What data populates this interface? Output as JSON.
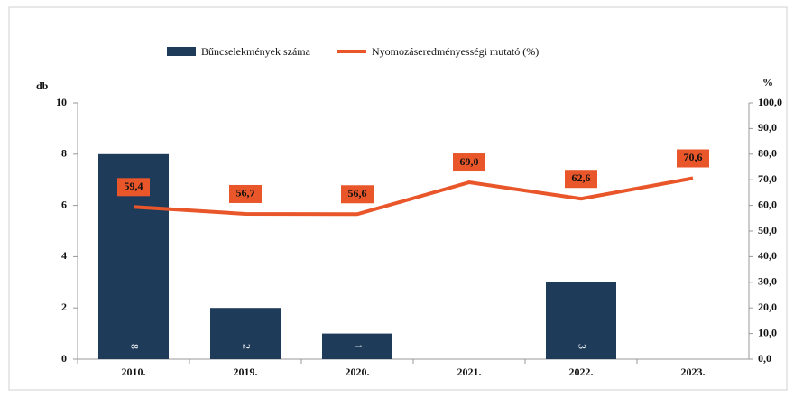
{
  "chart_data": {
    "type": "bar-line",
    "legend_position": "top",
    "y_label": "db",
    "y2_label": "%",
    "categories": [
      "2010.",
      "2019.",
      "2020.",
      "2021.",
      "2022.",
      "2023."
    ],
    "series": [
      {
        "name": "Bűncselekmények száma",
        "type": "bar",
        "color": "#1f3b5a",
        "values": [
          8,
          2,
          1,
          null,
          3,
          null
        ]
      },
      {
        "name": "Nyomozáseredményességi mutató (%)",
        "type": "line",
        "axis": "y2",
        "color": "#e8562a",
        "values": [
          59.4,
          56.7,
          56.6,
          69.0,
          62.6,
          70.6
        ],
        "value_labels": [
          "59,4",
          "56,7",
          "56,6",
          "69,0",
          "62,6",
          "70,6"
        ]
      }
    ],
    "ylim": [
      0,
      10
    ],
    "yticks": [
      0,
      2,
      4,
      6,
      8,
      10
    ],
    "y2lim": [
      0,
      100
    ],
    "y2ticks": [
      {
        "value": 0,
        "label": "0,0"
      },
      {
        "value": 10,
        "label": "10,0"
      },
      {
        "value": 20,
        "label": "20,0"
      },
      {
        "value": 30,
        "label": "30,0"
      },
      {
        "value": 40,
        "label": "40,0"
      },
      {
        "value": 50,
        "label": "50,0"
      },
      {
        "value": 60,
        "label": "60,0"
      },
      {
        "value": 70,
        "label": "70,0"
      },
      {
        "value": 80,
        "label": "80,0"
      },
      {
        "value": 90,
        "label": "90,0"
      },
      {
        "value": 100,
        "label": "100,0"
      }
    ],
    "grid": false
  }
}
